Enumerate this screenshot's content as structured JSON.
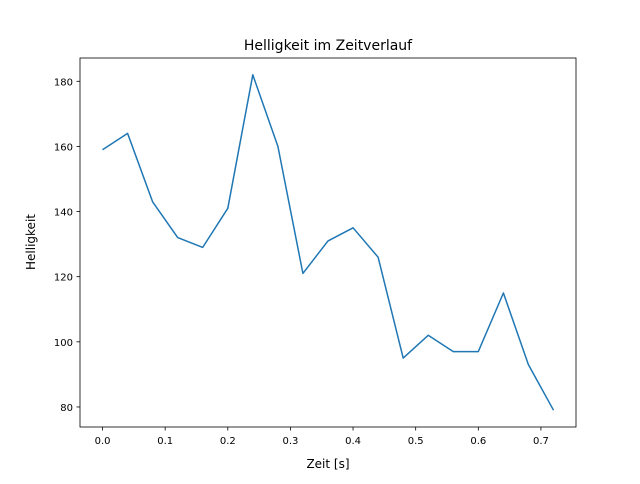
{
  "chart_data": {
    "type": "line",
    "title": "Helligkeit im Zeitverlauf",
    "xlabel": "Zeit [s]",
    "ylabel": "Helligkeit",
    "xlim": [
      -0.036,
      0.756
    ],
    "ylim": [
      73.85,
      187.15
    ],
    "xticks": [
      0.0,
      0.1,
      0.2,
      0.3,
      0.4,
      0.5,
      0.6,
      0.7
    ],
    "xtick_labels": [
      "0.0",
      "0.1",
      "0.2",
      "0.3",
      "0.4",
      "0.5",
      "0.6",
      "0.7"
    ],
    "yticks": [
      80,
      100,
      120,
      140,
      160,
      180
    ],
    "ytick_labels": [
      "80",
      "100",
      "120",
      "140",
      "160",
      "180"
    ],
    "grid": false,
    "series": [
      {
        "name": "Helligkeit",
        "color": "#1f77b4",
        "x": [
          0.0,
          0.04,
          0.08,
          0.12,
          0.16,
          0.2,
          0.24,
          0.28,
          0.32,
          0.36,
          0.4,
          0.44,
          0.48,
          0.52,
          0.56,
          0.6,
          0.64,
          0.68,
          0.72
        ],
        "y": [
          159,
          164,
          143,
          132,
          129,
          141,
          182,
          160,
          121,
          131,
          135,
          126,
          95,
          102,
          97,
          97,
          115,
          93,
          79
        ]
      }
    ]
  }
}
